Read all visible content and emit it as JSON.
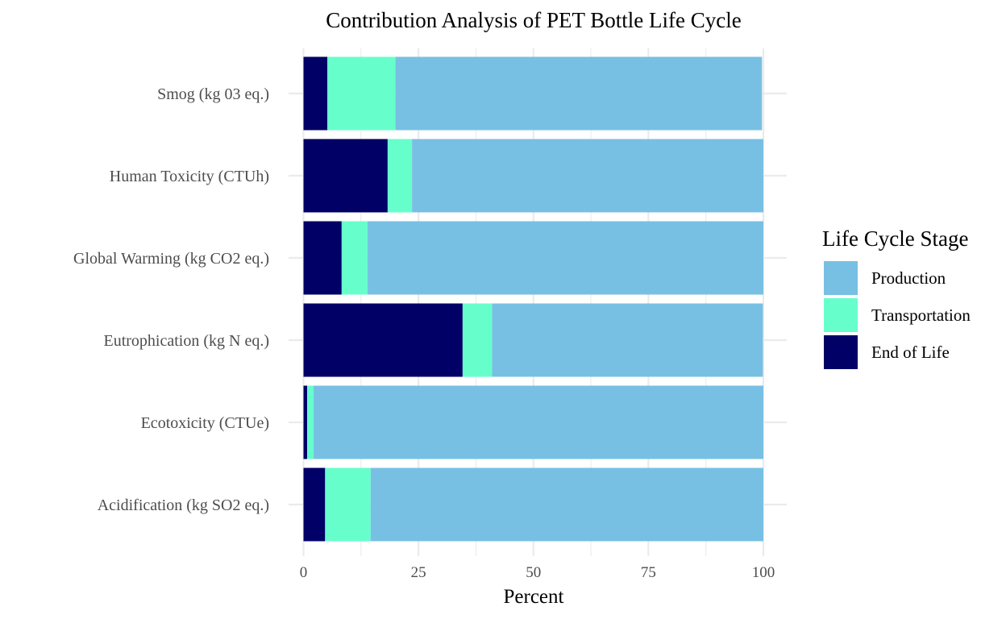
{
  "chart_data": {
    "type": "bar",
    "orientation": "horizontal",
    "stacked": true,
    "title": "Contribution Analysis of PET Bottle Life Cycle",
    "xlabel": "Percent",
    "ylabel": "",
    "xlim": [
      0,
      100
    ],
    "x_ticks": [
      "0",
      "25",
      "50",
      "75",
      "100"
    ],
    "categories": [
      "Smog (kg 03 eq.)",
      "Human Toxicity (CTUh)",
      "Global Warming (kg CO2 eq.)",
      "Eutrophication (kg N eq.)",
      "Ecotoxicity (CTUe)",
      "Acidification (kg SO2 eq.)"
    ],
    "series": [
      {
        "name": "End of Life",
        "color": "#000066",
        "values": [
          5.2,
          18.3,
          8.3,
          34.6,
          0.8,
          4.7
        ]
      },
      {
        "name": "Transportation",
        "color": "#66ffcc",
        "values": [
          14.8,
          5.3,
          5.6,
          6.4,
          1.4,
          9.9
        ]
      },
      {
        "name": "Production",
        "color": "#77c0e3",
        "values": [
          79.7,
          76.4,
          86.1,
          58.9,
          97.8,
          85.4
        ]
      }
    ],
    "legend": {
      "title": "Life Cycle Stage",
      "position": "right",
      "entries": [
        "Production",
        "Transportation",
        "End of Life"
      ]
    },
    "grid": true
  }
}
